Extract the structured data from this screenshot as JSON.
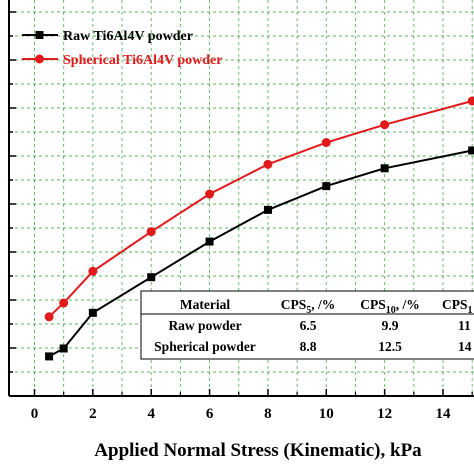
{
  "chart_data": {
    "type": "line",
    "xlabel": "Applied Normal Stress (Kinematic), kPa",
    "xlim": [
      -0.8,
      15
    ],
    "ylim": [
      0,
      10
    ],
    "grid": true,
    "x_ticks": [
      "0",
      "2",
      "4",
      "6",
      "8",
      "10",
      "12",
      "14"
    ],
    "legend_position": "top-left",
    "series": [
      {
        "name": "Raw Ti6Al4V powder",
        "color": "#000000",
        "marker": "square",
        "x": [
          0.5,
          1,
          2,
          4,
          6,
          8,
          10,
          12,
          15
        ],
        "y": [
          1.0,
          1.2,
          2.1,
          3.0,
          3.9,
          4.7,
          5.3,
          5.75,
          6.2
        ]
      },
      {
        "name": "Spherical Ti6Al4V powder",
        "color": "#e31a1c",
        "marker": "circle",
        "x": [
          0.5,
          1,
          2,
          4,
          6,
          8,
          10,
          12,
          15
        ],
        "y": [
          2.0,
          2.35,
          3.15,
          4.15,
          5.1,
          5.85,
          6.4,
          6.85,
          7.45
        ]
      }
    ],
    "inset_table": {
      "headers": [
        {
          "main": "Material",
          "sub": "",
          "tail": ""
        },
        {
          "main": "CPS",
          "sub": "5",
          "tail": ", /%"
        },
        {
          "main": "CPS",
          "sub": "10",
          "tail": ", /%"
        },
        {
          "main": "CPS",
          "sub": "1",
          "tail": ""
        }
      ],
      "rows": [
        [
          "Raw powder",
          "6.5",
          "9.9",
          "11"
        ],
        [
          "Spherical powder",
          "8.8",
          "12.5",
          "14"
        ]
      ]
    }
  }
}
